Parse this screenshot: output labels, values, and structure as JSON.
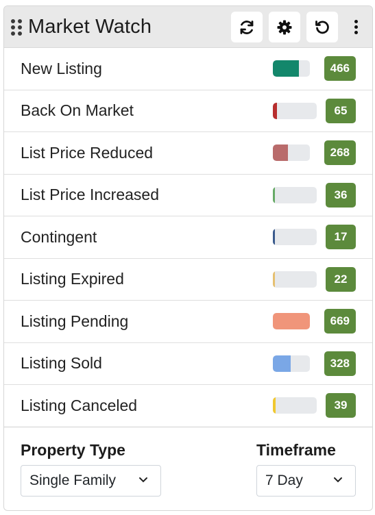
{
  "header": {
    "title": "Market Watch",
    "icons": {
      "drag": "drag-handle-icon",
      "refresh": "refresh-icon",
      "settings": "gear-icon",
      "reset": "undo-icon",
      "more": "kebab-menu-icon"
    }
  },
  "rows": [
    {
      "label": "New Listing",
      "count": "466",
      "fill": 0.7,
      "color": "#13876b"
    },
    {
      "label": "Back On Market",
      "count": "65",
      "fill": 0.1,
      "color": "#b82e2e"
    },
    {
      "label": "List Price Reduced",
      "count": "268",
      "fill": 0.4,
      "color": "#b96b6b"
    },
    {
      "label": "List Price Increased",
      "count": "36",
      "fill": 0.05,
      "color": "#66aa66"
    },
    {
      "label": "Contingent",
      "count": "17",
      "fill": 0.02,
      "color": "#3a5a8c"
    },
    {
      "label": "Listing Expired",
      "count": "22",
      "fill": 0.03,
      "color": "#e6c070"
    },
    {
      "label": "Listing Pending",
      "count": "669",
      "fill": 1.0,
      "color": "#f0957a"
    },
    {
      "label": "Listing Sold",
      "count": "328",
      "fill": 0.49,
      "color": "#7aa7e6"
    },
    {
      "label": "Listing Canceled",
      "count": "39",
      "fill": 0.06,
      "color": "#f0c830"
    }
  ],
  "filters": {
    "property_type": {
      "label": "Property Type",
      "value": "Single Family"
    },
    "timeframe": {
      "label": "Timeframe",
      "value": "7 Day"
    }
  }
}
